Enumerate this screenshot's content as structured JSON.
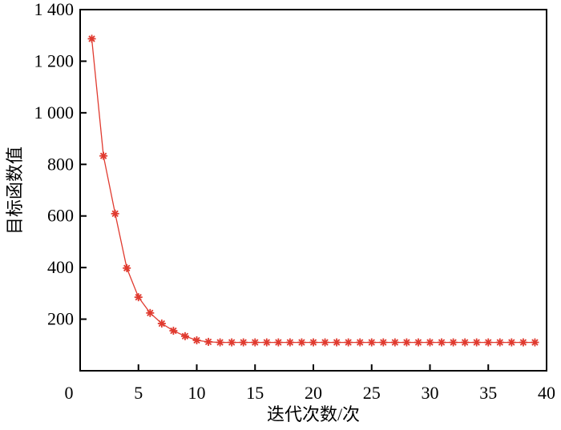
{
  "chart_data": {
    "type": "line",
    "title": "",
    "xlabel": "迭代次数/次",
    "ylabel": "目标函数值",
    "xlim": [
      0,
      40
    ],
    "ylim": [
      0,
      1400
    ],
    "xticks": [
      0,
      5,
      10,
      15,
      20,
      25,
      30,
      35,
      40
    ],
    "xtick_labels": [
      "0",
      "5",
      "10",
      "15",
      "20",
      "25",
      "30",
      "35",
      "40"
    ],
    "yticks": [
      200,
      400,
      600,
      800,
      1000,
      1200,
      1400
    ],
    "ytick_labels": [
      "200",
      "400",
      "600",
      "800",
      "1 000",
      "1 200",
      "1 400"
    ],
    "grid": false,
    "marker": "asterisk",
    "color": "#e03a2f",
    "series": [
      {
        "x": [
          1,
          2,
          3,
          4,
          5,
          6,
          7,
          8,
          9,
          10,
          11,
          12,
          13,
          14,
          15,
          16,
          17,
          18,
          19,
          20,
          21,
          22,
          23,
          24,
          25,
          26,
          27,
          28,
          29,
          30,
          31,
          32,
          33,
          34,
          35,
          36,
          37,
          38,
          39
        ],
        "y": [
          1287,
          833,
          609,
          398,
          285,
          224,
          183,
          155,
          134,
          118,
          112,
          110,
          110,
          110,
          110,
          110,
          110,
          110,
          110,
          110,
          110,
          110,
          110,
          110,
          110,
          110,
          110,
          110,
          110,
          110,
          110,
          110,
          110,
          110,
          110,
          110,
          110,
          110,
          110
        ]
      }
    ]
  }
}
